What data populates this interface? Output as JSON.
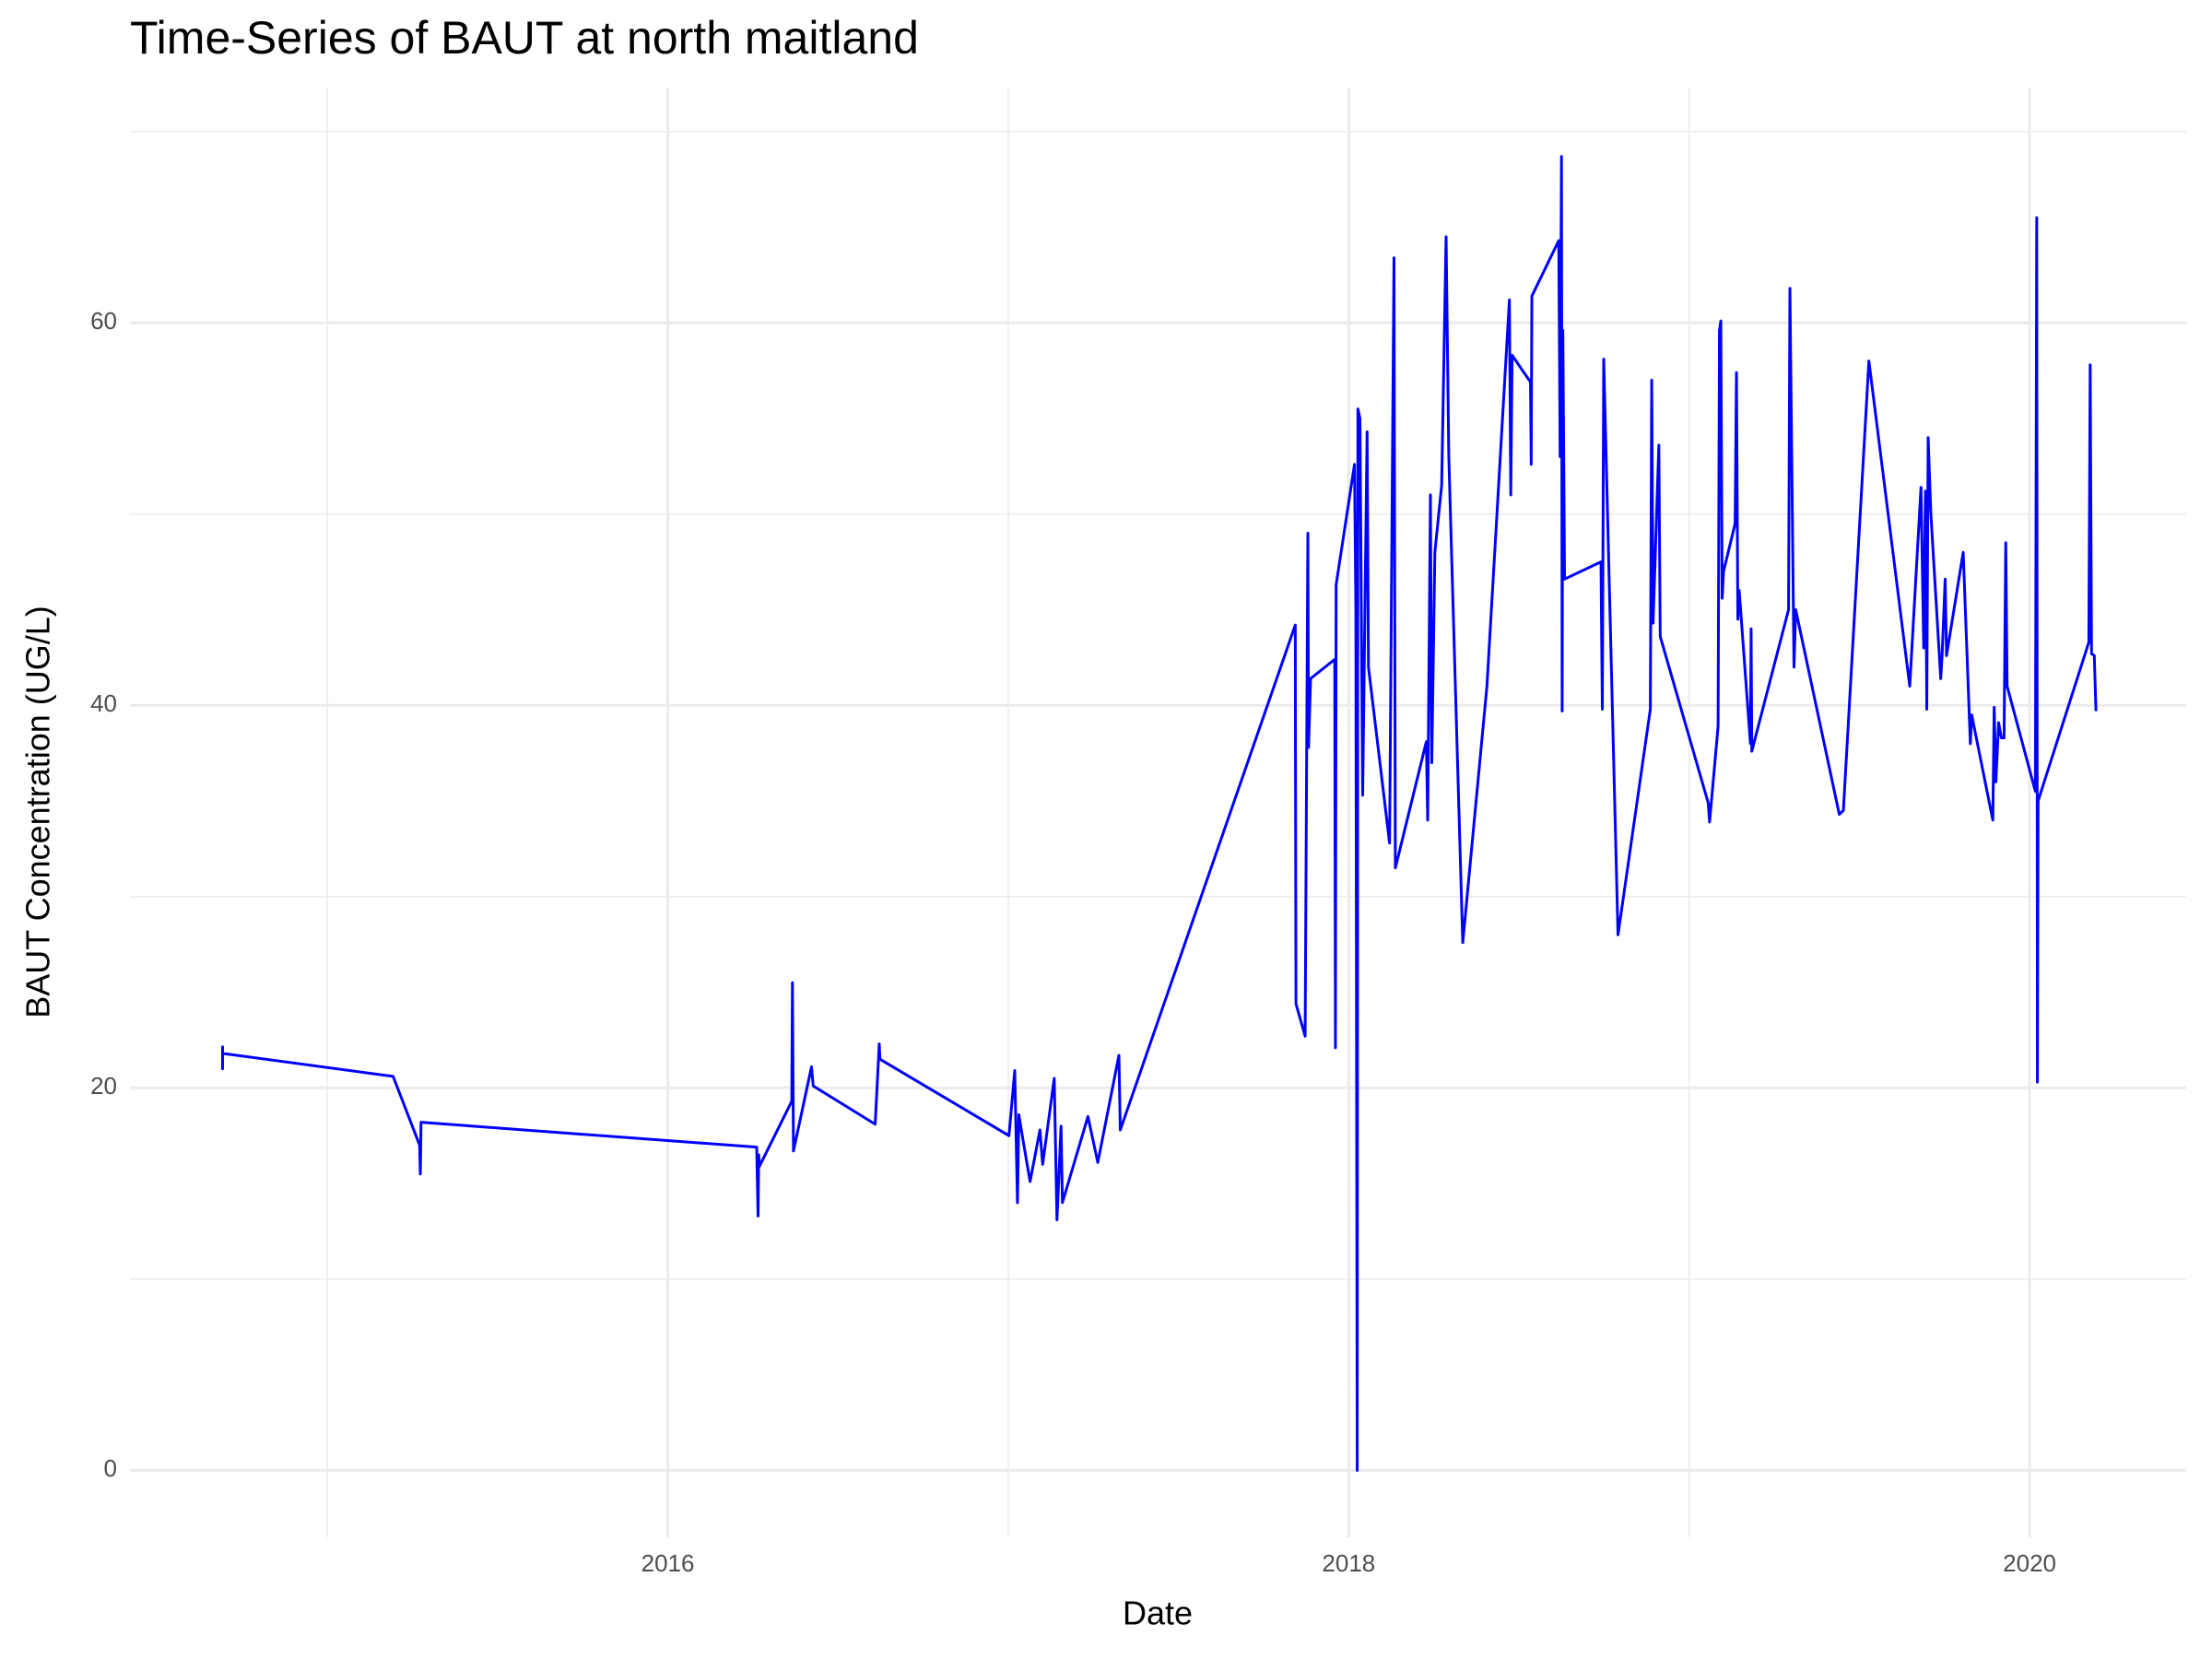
{
  "chart_data": {
    "type": "line",
    "title": "Time-Series of BAUT at north maitland",
    "x_label": "Date",
    "y_label": "BAUT Concentration (UG/L)",
    "color": "#0000ff",
    "grid": true,
    "xlim": [
      2014.42,
      2020.46
    ],
    "ylim": [
      -3.5,
      72.3
    ],
    "xticks": [
      2016,
      2018,
      2020
    ],
    "yticks": [
      0,
      20,
      40,
      60
    ],
    "x": [
      2014.692,
      2014.692,
      2014.692,
      2015.193,
      2015.271,
      2015.273,
      2015.275,
      2016.261,
      2016.265,
      2016.267,
      2016.269,
      2016.364,
      2016.366,
      2016.369,
      2016.422,
      2016.427,
      2016.609,
      2016.621,
      2016.623,
      2017.002,
      2017.019,
      2017.027,
      2017.031,
      2017.043,
      2017.064,
      2017.093,
      2017.101,
      2017.135,
      2017.143,
      2017.155,
      2017.159,
      2017.234,
      2017.263,
      2017.325,
      2017.329,
      2017.843,
      2017.845,
      2017.872,
      2017.88,
      2017.882,
      2017.888,
      2017.959,
      2017.961,
      2017.963,
      2018.017,
      2018.021,
      2018.025,
      2018.027,
      2018.033,
      2018.041,
      2018.054,
      2018.058,
      2018.12,
      2018.133,
      2018.135,
      2018.137,
      2018.228,
      2018.232,
      2018.24,
      2018.244,
      2018.253,
      2018.273,
      2018.286,
      2018.294,
      2018.331,
      2018.335,
      2018.406,
      2018.472,
      2018.476,
      2018.48,
      2018.534,
      2018.536,
      2018.538,
      2018.617,
      2018.621,
      2018.625,
      2018.627,
      2018.629,
      2018.634,
      2018.741,
      2018.745,
      2018.749,
      2018.791,
      2018.886,
      2018.89,
      2018.894,
      2018.911,
      2018.915,
      2019.056,
      2019.06,
      2019.085,
      2019.089,
      2019.093,
      2019.097,
      2019.101,
      2019.135,
      2019.139,
      2019.143,
      2019.147,
      2019.18,
      2019.182,
      2019.184,
      2019.292,
      2019.296,
      2019.308,
      2019.313,
      2019.441,
      2019.453,
      2019.528,
      2019.648,
      2019.681,
      2019.689,
      2019.694,
      2019.698,
      2019.702,
      2019.71,
      2019.739,
      2019.743,
      2019.752,
      2019.756,
      2019.805,
      2019.826,
      2019.83,
      2019.892,
      2019.896,
      2019.901,
      2019.909,
      2019.917,
      2019.925,
      2019.93,
      2019.934,
      2020.017,
      2020.021,
      2020.023,
      2020.025,
      2020.174,
      2020.178,
      2020.182,
      2020.19,
      2020.195
    ],
    "values": [
      22.2,
      21.0,
      21.8,
      20.6,
      17.0,
      15.5,
      18.2,
      16.9,
      13.3,
      16.5,
      15.9,
      19.3,
      25.5,
      16.7,
      21.1,
      20.1,
      18.1,
      22.3,
      21.5,
      17.5,
      20.9,
      14.0,
      18.6,
      17.3,
      15.1,
      17.8,
      16.0,
      20.5,
      13.1,
      18.0,
      14.0,
      18.5,
      16.1,
      21.7,
      17.8,
      44.2,
      24.4,
      22.7,
      49.0,
      37.8,
      41.4,
      42.4,
      22.1,
      46.3,
      52.6,
      45.0,
      0,
      55.5,
      55.0,
      35.3,
      54.3,
      42.0,
      32.8,
      63.4,
      47.4,
      31.5,
      38.1,
      34.0,
      51.0,
      37.0,
      48.0,
      51.5,
      64.5,
      53.0,
      30.0,
      27.6,
      41.0,
      61.2,
      51.0,
      58.3,
      56.9,
      52.6,
      61.4,
      64.3,
      53.0,
      68.7,
      39.7,
      59.6,
      46.6,
      47.5,
      39.8,
      58.1,
      28.0,
      39.8,
      57.0,
      44.3,
      53.6,
      43.6,
      34.9,
      33.9,
      38.9,
      59.6,
      60.1,
      45.6,
      47.0,
      49.5,
      57.4,
      44.5,
      46.0,
      38.0,
      44.0,
      37.6,
      45.0,
      61.8,
      42.0,
      45.0,
      34.3,
      34.5,
      58.0,
      41.0,
      51.4,
      43.0,
      51.2,
      39.8,
      54.0,
      50.0,
      41.4,
      42.6,
      46.6,
      42.6,
      48.0,
      38.0,
      39.5,
      34.0,
      39.9,
      36.0,
      39.1,
      38.3,
      38.3,
      48.5,
      41.0,
      35.5,
      65.5,
      20.3,
      35.0,
      43.3,
      57.8,
      42.7,
      42.6,
      39.7
    ]
  }
}
